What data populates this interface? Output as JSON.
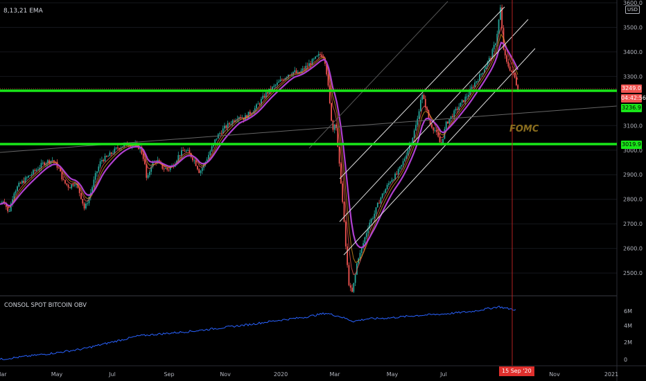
{
  "indicator_label": "8,13,21 EMA",
  "obv_label": "CONSOL SPOT BITCOIN OBV",
  "currency": "USD",
  "annotation": "FOMC",
  "price_axis": {
    "ticks": [
      "3600.0",
      "3500.0",
      "3400.0",
      "3300.0",
      "3100.0",
      "3000.0",
      "2900.0",
      "2800.0",
      "2700.0",
      "2600.0",
      "2500.0"
    ],
    "range": [
      2410,
      3600
    ]
  },
  "obv_axis": {
    "ticks": [
      "6M",
      "4M",
      "2M",
      "0"
    ]
  },
  "time_axis": {
    "ticks": [
      "Mar",
      "May",
      "Jul",
      "Sep",
      "Nov",
      "2020",
      "Mar",
      "May",
      "Jul",
      "Sep",
      "Nov",
      "2021"
    ]
  },
  "price_tags": {
    "current": "3249.0",
    "countdown": "04:42:56",
    "level_1": "3236.9",
    "level_2": "3019.9"
  },
  "cursor_date": "15 Sep '20",
  "colors": {
    "support_line": "#19e619",
    "ema": "#b040d0",
    "up_candle": "#26a69a",
    "down_candle": "#ef5350",
    "obv": "#2962ff",
    "current_tag": "#f05350"
  },
  "chart_data": {
    "type": "line",
    "title": "",
    "ema_label": "8,13,21 EMA",
    "price_ylim": [
      2410,
      3600
    ],
    "price_path": [
      [
        0,
        2780
      ],
      [
        6,
        2800
      ],
      [
        12,
        2740
      ],
      [
        20,
        2830
      ],
      [
        28,
        2860
      ],
      [
        40,
        2890
      ],
      [
        52,
        2920
      ],
      [
        64,
        2950
      ],
      [
        76,
        2960
      ],
      [
        84,
        2930
      ],
      [
        92,
        2870
      ],
      [
        100,
        2850
      ],
      [
        108,
        2870
      ],
      [
        116,
        2820
      ],
      [
        122,
        2760
      ],
      [
        130,
        2820
      ],
      [
        138,
        2900
      ],
      [
        146,
        2960
      ],
      [
        154,
        2970
      ],
      [
        162,
        2990
      ],
      [
        170,
        3010
      ],
      [
        178,
        3020
      ],
      [
        186,
        3025
      ],
      [
        194,
        3020
      ],
      [
        202,
        3010
      ],
      [
        208,
        2960
      ],
      [
        212,
        2870
      ],
      [
        218,
        2940
      ],
      [
        226,
        2960
      ],
      [
        234,
        2930
      ],
      [
        242,
        2920
      ],
      [
        250,
        2940
      ],
      [
        258,
        2980
      ],
      [
        266,
        3000
      ],
      [
        272,
        2990
      ],
      [
        280,
        2960
      ],
      [
        288,
        2910
      ],
      [
        296,
        2950
      ],
      [
        304,
        3000
      ],
      [
        312,
        3050
      ],
      [
        320,
        3080
      ],
      [
        328,
        3100
      ],
      [
        336,
        3120
      ],
      [
        344,
        3140
      ],
      [
        352,
        3130
      ],
      [
        360,
        3150
      ],
      [
        368,
        3170
      ],
      [
        376,
        3200
      ],
      [
        384,
        3230
      ],
      [
        392,
        3250
      ],
      [
        400,
        3270
      ],
      [
        408,
        3290
      ],
      [
        416,
        3310
      ],
      [
        424,
        3320
      ],
      [
        430,
        3310
      ],
      [
        438,
        3330
      ],
      [
        446,
        3350
      ],
      [
        454,
        3370
      ],
      [
        462,
        3390
      ],
      [
        468,
        3380
      ],
      [
        472,
        3300
      ],
      [
        476,
        3180
      ],
      [
        480,
        3080
      ],
      [
        484,
        3130
      ],
      [
        488,
        2980
      ],
      [
        492,
        2870
      ],
      [
        496,
        2720
      ],
      [
        500,
        2560
      ],
      [
        504,
        2440
      ],
      [
        508,
        2420
      ],
      [
        512,
        2480
      ],
      [
        516,
        2560
      ],
      [
        520,
        2580
      ],
      [
        526,
        2640
      ],
      [
        532,
        2700
      ],
      [
        540,
        2740
      ],
      [
        548,
        2800
      ],
      [
        556,
        2840
      ],
      [
        564,
        2880
      ],
      [
        572,
        2900
      ],
      [
        580,
        2940
      ],
      [
        588,
        3000
      ],
      [
        596,
        3060
      ],
      [
        602,
        3120
      ],
      [
        608,
        3230
      ],
      [
        614,
        3180
      ],
      [
        620,
        3110
      ],
      [
        628,
        3080
      ],
      [
        636,
        3020
      ],
      [
        644,
        3110
      ],
      [
        652,
        3140
      ],
      [
        660,
        3170
      ],
      [
        668,
        3200
      ],
      [
        676,
        3230
      ],
      [
        684,
        3270
      ],
      [
        692,
        3300
      ],
      [
        700,
        3340
      ],
      [
        708,
        3380
      ],
      [
        716,
        3450
      ],
      [
        722,
        3580
      ],
      [
        726,
        3420
      ],
      [
        730,
        3360
      ],
      [
        736,
        3330
      ],
      [
        742,
        3300
      ],
      [
        748,
        3240
      ]
    ],
    "support_levels": [
      3236.9,
      3019.9
    ],
    "obv_path": [
      [
        0,
        0.1
      ],
      [
        40,
        0.5
      ],
      [
        80,
        0.9
      ],
      [
        120,
        1.4
      ],
      [
        160,
        2.2
      ],
      [
        200,
        3.0
      ],
      [
        240,
        3.3
      ],
      [
        280,
        3.6
      ],
      [
        320,
        4.0
      ],
      [
        360,
        4.4
      ],
      [
        400,
        4.9
      ],
      [
        440,
        5.3
      ],
      [
        470,
        5.8
      ],
      [
        490,
        5.4
      ],
      [
        510,
        4.8
      ],
      [
        530,
        5.1
      ],
      [
        560,
        5.2
      ],
      [
        600,
        5.5
      ],
      [
        640,
        5.7
      ],
      [
        680,
        6.0
      ],
      [
        700,
        6.3
      ],
      [
        720,
        6.6
      ],
      [
        730,
        6.4
      ],
      [
        745,
        6.2
      ]
    ]
  }
}
